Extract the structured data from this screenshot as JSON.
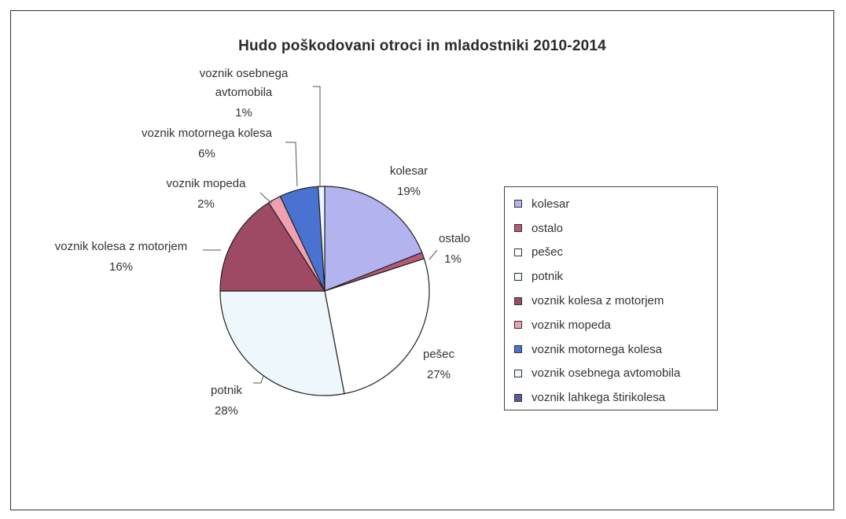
{
  "chart_data": {
    "type": "pie",
    "title": "Hudo poškodovani otroci in mladostniki 2010-2014",
    "slices": [
      {
        "name": "kolesar",
        "value": 19,
        "label": "19%",
        "color": "#b3b3f0"
      },
      {
        "name": "ostalo",
        "value": 1,
        "label": "1%",
        "color": "#b55a78"
      },
      {
        "name": "pešec",
        "value": 27,
        "label": "27%",
        "color": "#ffffff"
      },
      {
        "name": "potnik",
        "value": 28,
        "label": "28%",
        "color": "#eef7fb"
      },
      {
        "name": "voznik kolesa z motorjem",
        "value": 16,
        "label": "16%",
        "color": "#9e4a64"
      },
      {
        "name": "voznik mopeda",
        "value": 2,
        "label": "2%",
        "color": "#f0a0b0"
      },
      {
        "name": "voznik motornega kolesa",
        "value": 6,
        "label": "6%",
        "color": "#4a72d0"
      },
      {
        "name": "voznik osebnega avtomobila",
        "value": 1,
        "label": "1%",
        "color": "#eaf6fb"
      },
      {
        "name": "voznik lahkega štirikolesa",
        "value": 0,
        "label": "",
        "color": "#5a5a9a"
      }
    ],
    "legend_position": "right"
  }
}
